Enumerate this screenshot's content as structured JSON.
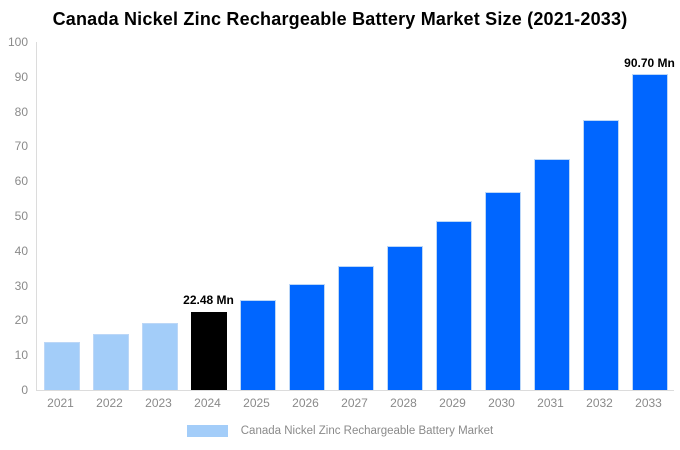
{
  "title": "Canada Nickel Zinc Rechargeable Battery Market Size (2021-2033)",
  "colors": {
    "historical_bar": "#a3cdf9",
    "highlight_bar": "#000000",
    "forecast_bar": "#0066ff",
    "bar_border": "#bcd7f7",
    "axis_line": "#dcdcdc",
    "axis_text": "#8a8a8a",
    "label_text": "#000000"
  },
  "chart_data": {
    "type": "bar",
    "title": "Canada Nickel Zinc Rechargeable Battery Market Size (2021-2033)",
    "xlabel": "",
    "ylabel": "",
    "ylim": [
      0,
      100
    ],
    "yticks": [
      0,
      10,
      20,
      30,
      40,
      50,
      60,
      70,
      80,
      90,
      100
    ],
    "grid": false,
    "categories": [
      "2021",
      "2022",
      "2023",
      "2024",
      "2025",
      "2026",
      "2027",
      "2028",
      "2029",
      "2030",
      "2031",
      "2032",
      "2033"
    ],
    "values": [
      13.9,
      16.2,
      19.2,
      22.48,
      25.9,
      30.5,
      35.5,
      41.5,
      48.5,
      56.8,
      66.3,
      77.5,
      90.7
    ],
    "bar_colors": [
      "#a3cdf9",
      "#a3cdf9",
      "#a3cdf9",
      "#000000",
      "#0066ff",
      "#0066ff",
      "#0066ff",
      "#0066ff",
      "#0066ff",
      "#0066ff",
      "#0066ff",
      "#0066ff",
      "#0066ff"
    ],
    "point_labels": [
      "",
      "",
      "",
      "22.48 Mn",
      "",
      "",
      "",
      "",
      "",
      "",
      "",
      "",
      "90.70 Mn"
    ],
    "legend": {
      "position": "bottom",
      "entries": [
        {
          "label": "Canada Nickel Zinc Rechargeable Battery Market",
          "color": "#a3cdf9"
        }
      ]
    }
  }
}
